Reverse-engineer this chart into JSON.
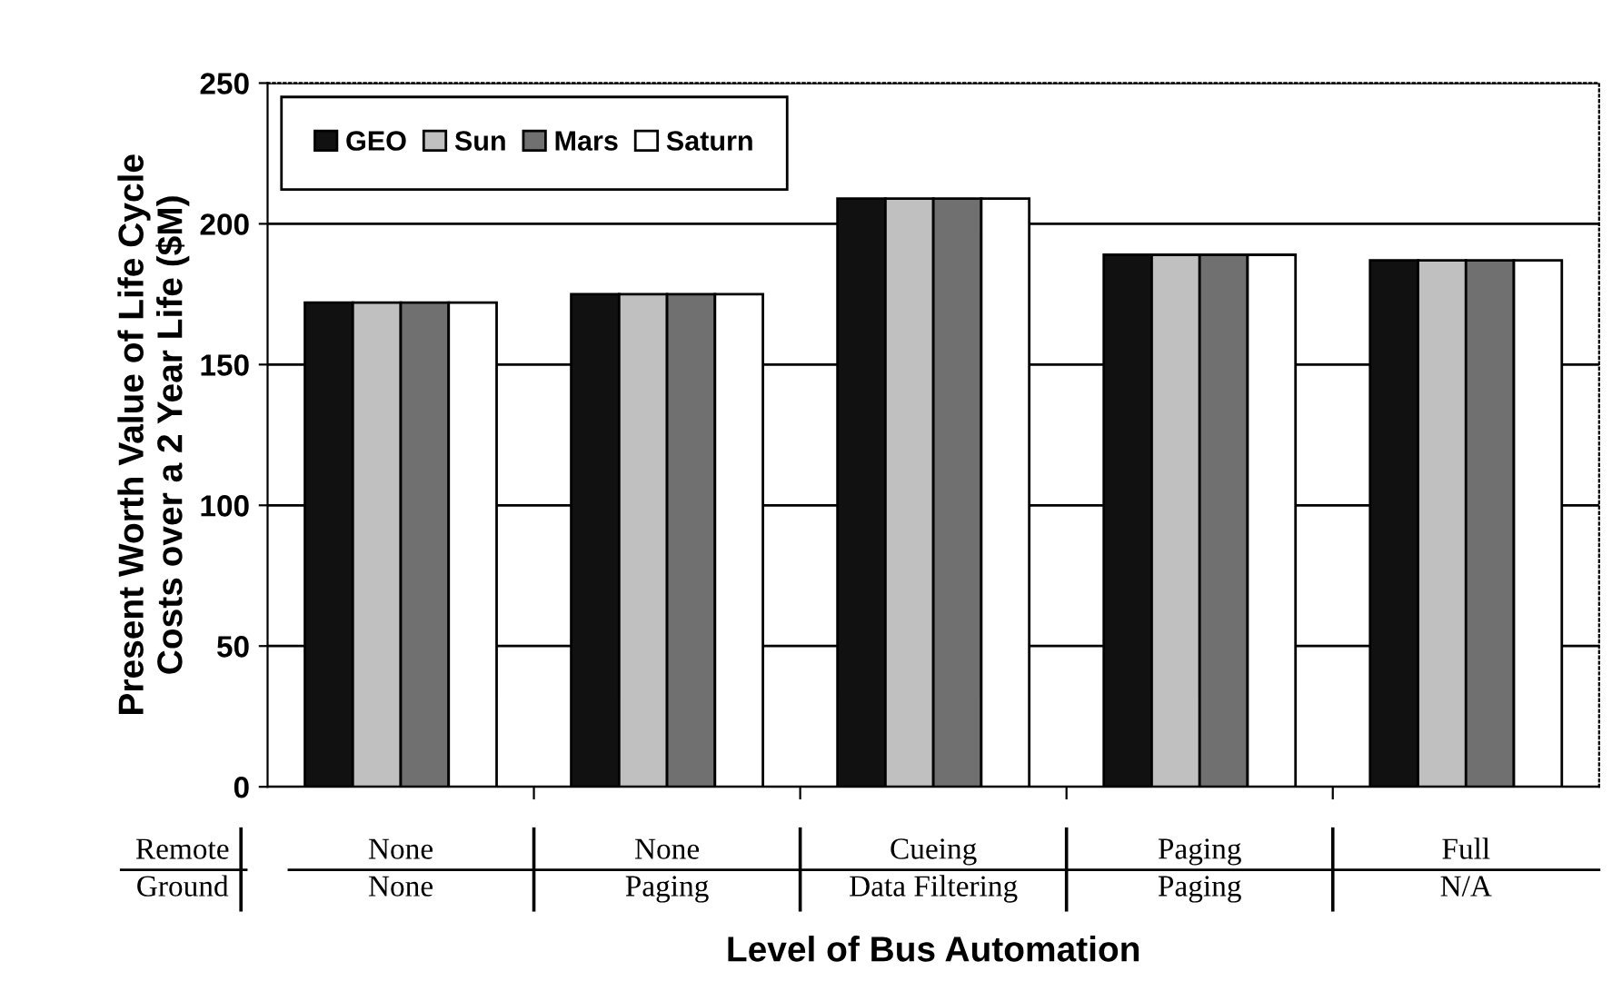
{
  "chart_data": {
    "type": "bar",
    "ylabel": "Present Worth Value of Life Cycle\nCosts over a 2 Year Life ($M)",
    "xlabel": "Level of Bus Automation",
    "categories": [
      "None\nNone",
      "None\nPaging",
      "Cueing\nData Filtering",
      "Paging\nPaging",
      "Full\nN/A"
    ],
    "annotations": [
      "Remote",
      "Ground"
    ],
    "series": [
      {
        "name": "GEO",
        "color": "#111111",
        "values": [
          172,
          175,
          209,
          189,
          187
        ]
      },
      {
        "name": "Sun",
        "color": "#c0c0c0",
        "values": [
          172,
          175,
          209,
          189,
          187
        ]
      },
      {
        "name": "Mars",
        "color": "#707070",
        "values": [
          172,
          175,
          209,
          189,
          187
        ]
      },
      {
        "name": "Saturn",
        "color": "#ffffff",
        "values": [
          172,
          175,
          209,
          189,
          187
        ]
      }
    ],
    "ylim": [
      0,
      250
    ],
    "yticks": [
      0,
      50,
      100,
      150,
      200,
      250
    ],
    "grid": "y",
    "legend": "top left"
  }
}
